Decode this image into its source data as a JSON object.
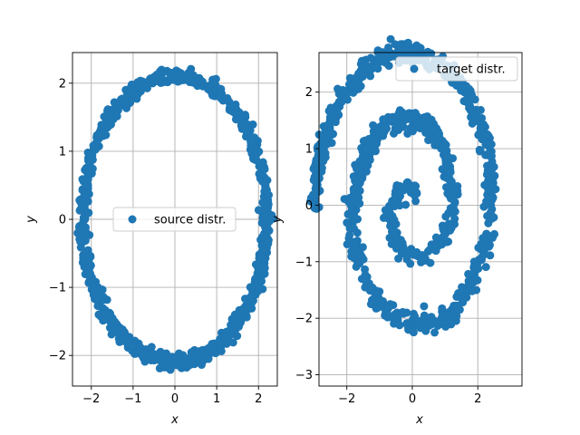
{
  "chart_data": [
    {
      "type": "scatter",
      "title": "",
      "xlabel": "x",
      "ylabel": "y",
      "xlim": [
        -2.45,
        2.45
      ],
      "ylim": [
        -2.45,
        2.45
      ],
      "xticks": [
        -2,
        -1,
        0,
        1,
        2
      ],
      "xtick_labels": [
        "−2",
        "−1",
        "0",
        "1",
        "2"
      ],
      "yticks": [
        -2,
        -1,
        0,
        1,
        2
      ],
      "ytick_labels": [
        "−2",
        "−1",
        "0",
        "1",
        "2"
      ],
      "grid": true,
      "legend_position": "center",
      "color": "#1f77b4",
      "series": [
        {
          "name": "source distr.",
          "shape": "ellipse",
          "center": [
            0,
            0
          ],
          "x_semi_axis": 2.2,
          "y_semi_axis": 2.1,
          "n_points": 1000
        }
      ]
    },
    {
      "type": "scatter",
      "title": "",
      "xlabel": "x",
      "ylabel": "y",
      "xlim": [
        -2.85,
        3.35
      ],
      "ylim": [
        -3.2,
        2.7
      ],
      "xticks": [
        -2,
        0,
        2
      ],
      "xtick_labels": [
        "−2",
        "0",
        "2"
      ],
      "yticks": [
        -3,
        -2,
        -1,
        0,
        1,
        2
      ],
      "ytick_labels": [
        "−3",
        "−2",
        "−1",
        "0",
        "1",
        "2"
      ],
      "grid": true,
      "legend_position": "upper right",
      "color": "#1f77b4",
      "series": [
        {
          "name": "target distr.",
          "shape": "spiral",
          "center": [
            0,
            0
          ],
          "turns": 2.5,
          "max_radius": 3.0,
          "n_points": 1000
        }
      ]
    }
  ]
}
